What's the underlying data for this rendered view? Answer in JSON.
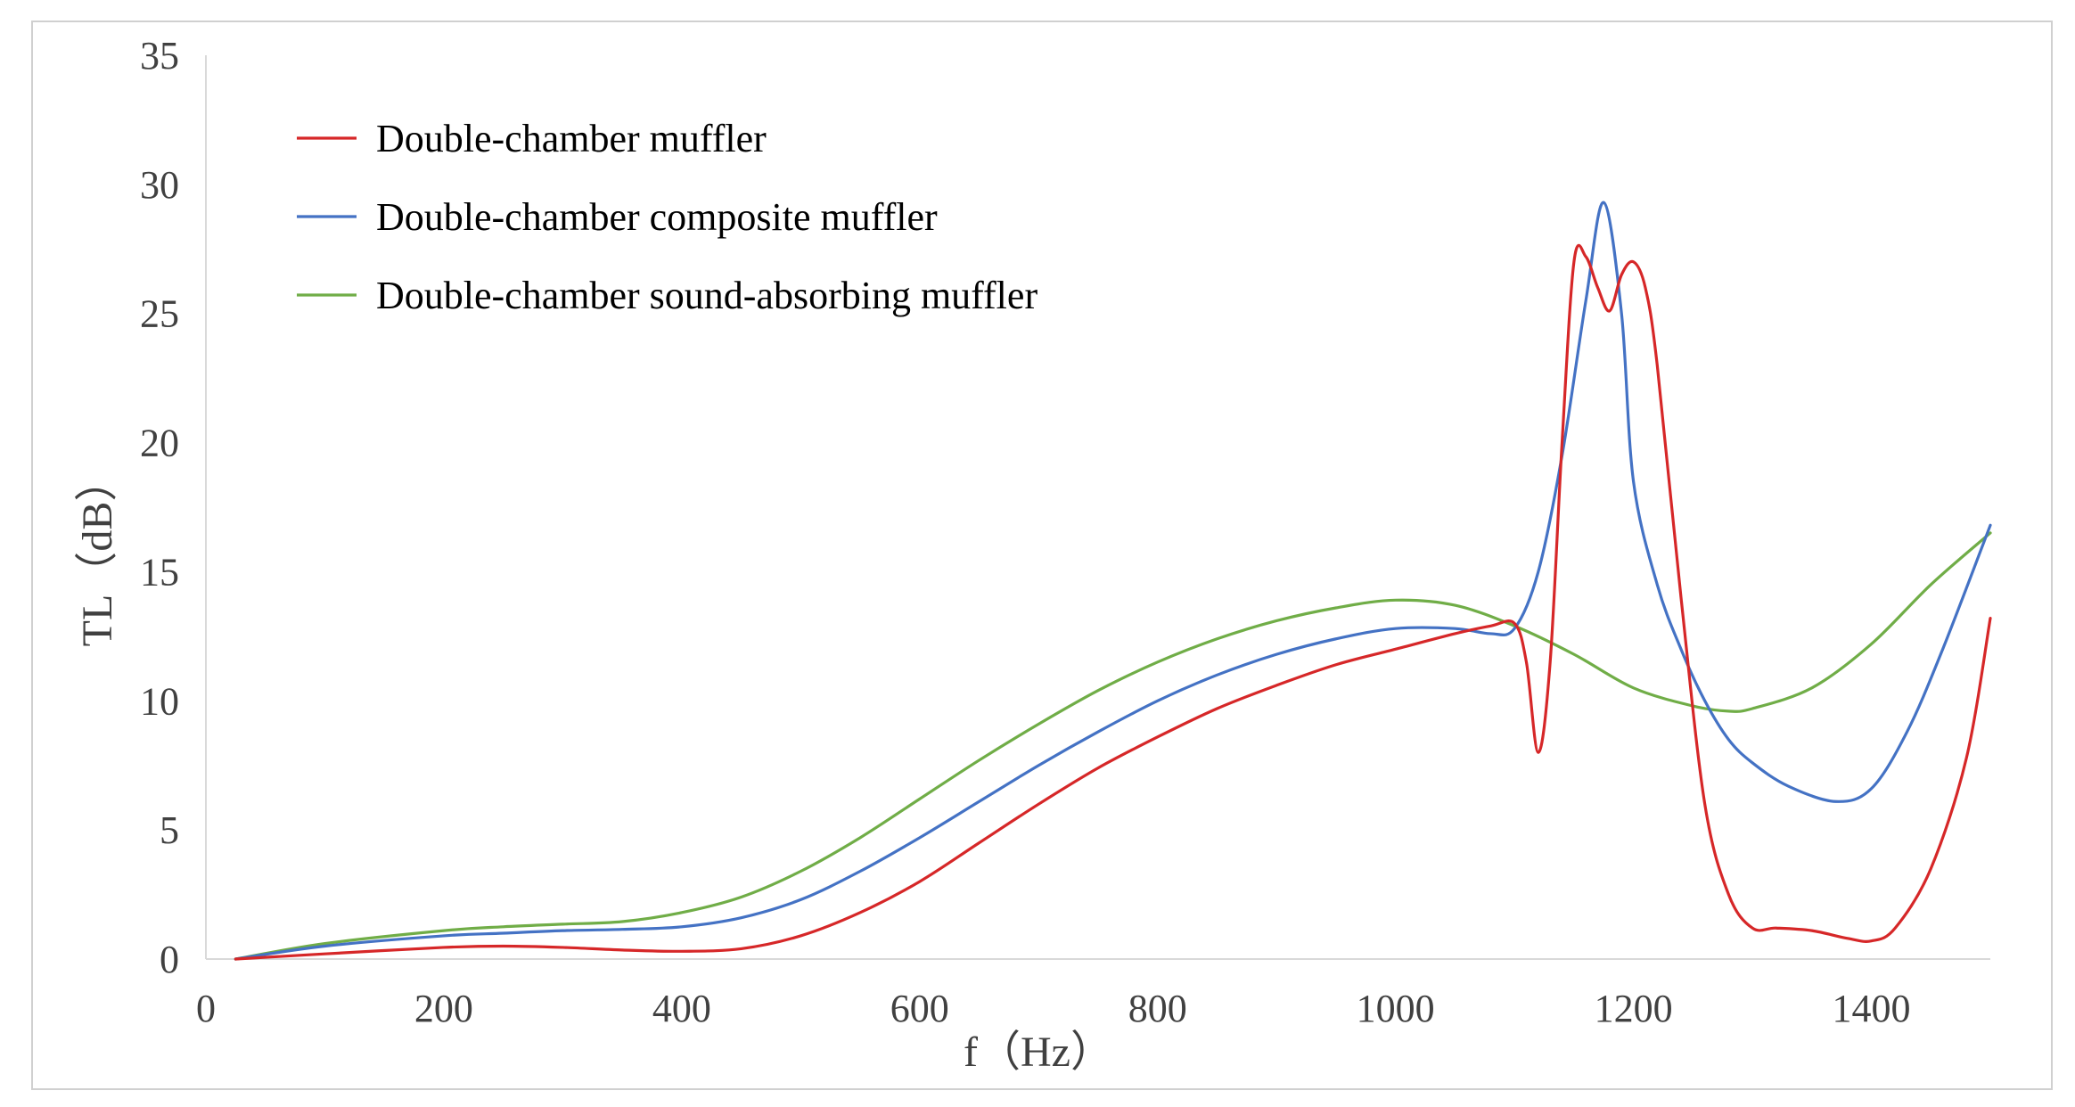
{
  "chart_data": {
    "type": "line",
    "title": "",
    "xlabel": "f（Hz）",
    "ylabel": "TL（dB）",
    "xlim": [
      0,
      1500
    ],
    "ylim": [
      0,
      35
    ],
    "x_ticks": [
      "0",
      "200",
      "400",
      "600",
      "800",
      "1000",
      "1200",
      "1400"
    ],
    "y_ticks": [
      "0",
      "5",
      "10",
      "15",
      "20",
      "25",
      "30",
      "35"
    ],
    "x_tick_values": [
      0,
      200,
      400,
      600,
      800,
      1000,
      1200,
      1400
    ],
    "y_tick_values": [
      0,
      5,
      10,
      15,
      20,
      25,
      30,
      35
    ],
    "grid": false,
    "legend_position": "top-left",
    "series": [
      {
        "name": "Double-chamber muffler",
        "color": "#d62728",
        "x": [
          25,
          100,
          200,
          250,
          300,
          350,
          400,
          450,
          500,
          550,
          600,
          650,
          700,
          750,
          800,
          850,
          900,
          950,
          1000,
          1050,
          1080,
          1100,
          1110,
          1120,
          1130,
          1140,
          1150,
          1160,
          1170,
          1180,
          1190,
          1200,
          1210,
          1220,
          1240,
          1260,
          1280,
          1300,
          1320,
          1350,
          1380,
          1400,
          1420,
          1450,
          1480,
          1500
        ],
        "y": [
          0,
          0.2,
          0.45,
          0.5,
          0.45,
          0.35,
          0.3,
          0.4,
          0.9,
          1.8,
          3.0,
          4.5,
          6.0,
          7.4,
          8.6,
          9.7,
          10.6,
          11.4,
          12.0,
          12.6,
          12.9,
          13.0,
          11.5,
          8.0,
          11.5,
          20.0,
          27.0,
          27.2,
          26.0,
          25.1,
          26.5,
          27.0,
          26.0,
          23.0,
          14.0,
          6.0,
          2.5,
          1.2,
          1.2,
          1.1,
          0.8,
          0.7,
          1.2,
          3.5,
          7.8,
          13.2
        ]
      },
      {
        "name": "Double-chamber composite muffler",
        "color": "#4472c4",
        "x": [
          25,
          100,
          200,
          250,
          300,
          350,
          400,
          450,
          500,
          550,
          600,
          650,
          700,
          750,
          800,
          850,
          900,
          950,
          1000,
          1050,
          1080,
          1100,
          1120,
          1140,
          1160,
          1175,
          1190,
          1200,
          1220,
          1240,
          1260,
          1280,
          1300,
          1330,
          1370,
          1400,
          1430,
          1460,
          1500
        ],
        "y": [
          0,
          0.5,
          0.9,
          1.0,
          1.1,
          1.15,
          1.25,
          1.6,
          2.3,
          3.4,
          4.7,
          6.1,
          7.5,
          8.8,
          10.0,
          11.0,
          11.8,
          12.4,
          12.8,
          12.8,
          12.6,
          12.8,
          15.0,
          19.5,
          25.5,
          29.3,
          25.0,
          18.5,
          14.5,
          12.0,
          10.0,
          8.5,
          7.6,
          6.7,
          6.1,
          6.6,
          8.8,
          12.0,
          16.8
        ]
      },
      {
        "name": "Double-chamber sound-absorbing muffler",
        "color": "#70ad47",
        "x": [
          25,
          100,
          200,
          250,
          300,
          350,
          400,
          450,
          500,
          550,
          600,
          650,
          700,
          750,
          800,
          850,
          900,
          950,
          1000,
          1050,
          1100,
          1150,
          1200,
          1250,
          1280,
          1300,
          1350,
          1400,
          1450,
          1500
        ],
        "y": [
          0,
          0.6,
          1.1,
          1.25,
          1.35,
          1.45,
          1.8,
          2.4,
          3.4,
          4.7,
          6.2,
          7.7,
          9.1,
          10.4,
          11.5,
          12.4,
          13.1,
          13.6,
          13.9,
          13.7,
          12.9,
          11.8,
          10.5,
          9.8,
          9.6,
          9.7,
          10.5,
          12.2,
          14.5,
          16.5
        ]
      }
    ]
  }
}
